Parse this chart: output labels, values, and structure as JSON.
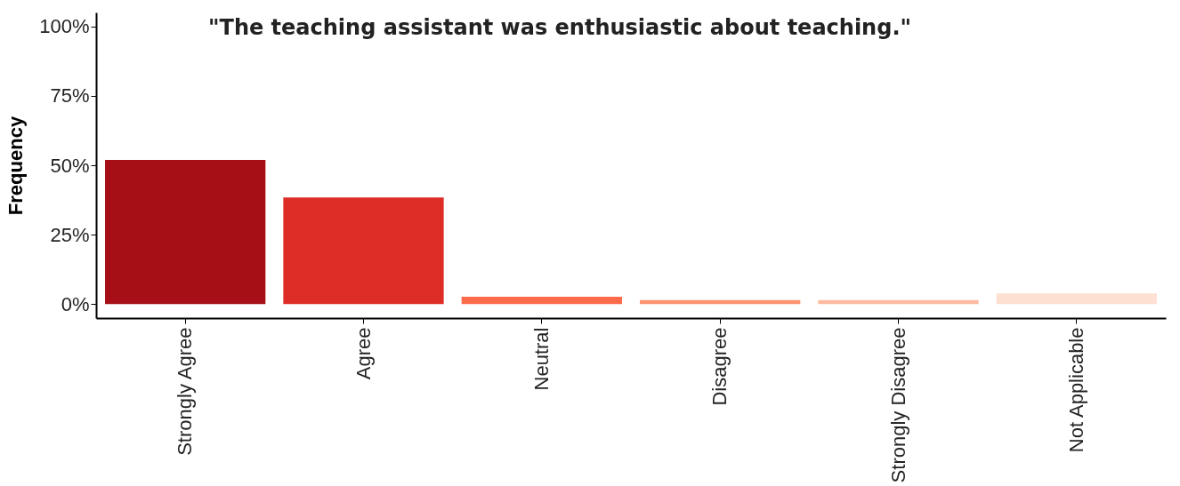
{
  "chart_data": {
    "type": "bar",
    "title": "\"The teaching assistant was enthusiastic about teaching.\"",
    "ylabel": "Frequency",
    "categories": [
      "Strongly Agree",
      "Agree",
      "Neutral",
      "Disagree",
      "Strongly Disagree",
      "Not Applicable"
    ],
    "values": [
      51.9,
      38.4,
      2.7,
      1.5,
      1.5,
      3.9
    ],
    "colors": [
      "#a50f15",
      "#de2d26",
      "#fb6a4a",
      "#fc9272",
      "#fcbba1",
      "#fee0d2"
    ],
    "ylim": [
      -5,
      105
    ],
    "yticks": [
      {
        "value": 0,
        "label": "0%"
      },
      {
        "value": 25,
        "label": "25%"
      },
      {
        "value": 50,
        "label": "50%"
      },
      {
        "value": 75,
        "label": "75%"
      },
      {
        "value": 100,
        "label": "100%"
      }
    ],
    "grid": false,
    "legend": false
  }
}
